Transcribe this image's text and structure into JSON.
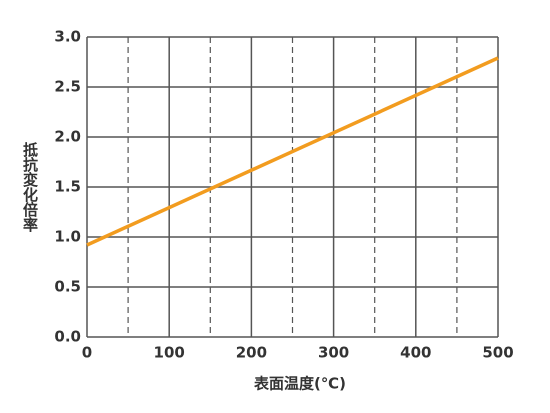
{
  "chart_data": {
    "type": "line",
    "x_label": "表面温度(℃)",
    "y_label": "抵抗変化倍率",
    "x": [
      0,
      500
    ],
    "series": [
      {
        "name": "抵抗変化倍率",
        "color": "#f29c1f",
        "values": [
          0.92,
          2.79
        ]
      }
    ],
    "xlim": [
      0,
      500
    ],
    "xticks": [
      0,
      100,
      200,
      300,
      400,
      500
    ],
    "x_minor_ticks": [
      50,
      150,
      250,
      350,
      450
    ],
    "ylim": [
      0,
      3
    ],
    "yticks": [
      {
        "value": 0,
        "label": "0.0"
      },
      {
        "value": 0.5,
        "label": "0.5"
      },
      {
        "value": 1,
        "label": "1.0"
      },
      {
        "value": 1.5,
        "label": "1.5"
      },
      {
        "value": 2,
        "label": "2.0"
      },
      {
        "value": 2.5,
        "label": "2.5"
      },
      {
        "value": 3,
        "label": "3.0"
      }
    ],
    "grid": true
  }
}
